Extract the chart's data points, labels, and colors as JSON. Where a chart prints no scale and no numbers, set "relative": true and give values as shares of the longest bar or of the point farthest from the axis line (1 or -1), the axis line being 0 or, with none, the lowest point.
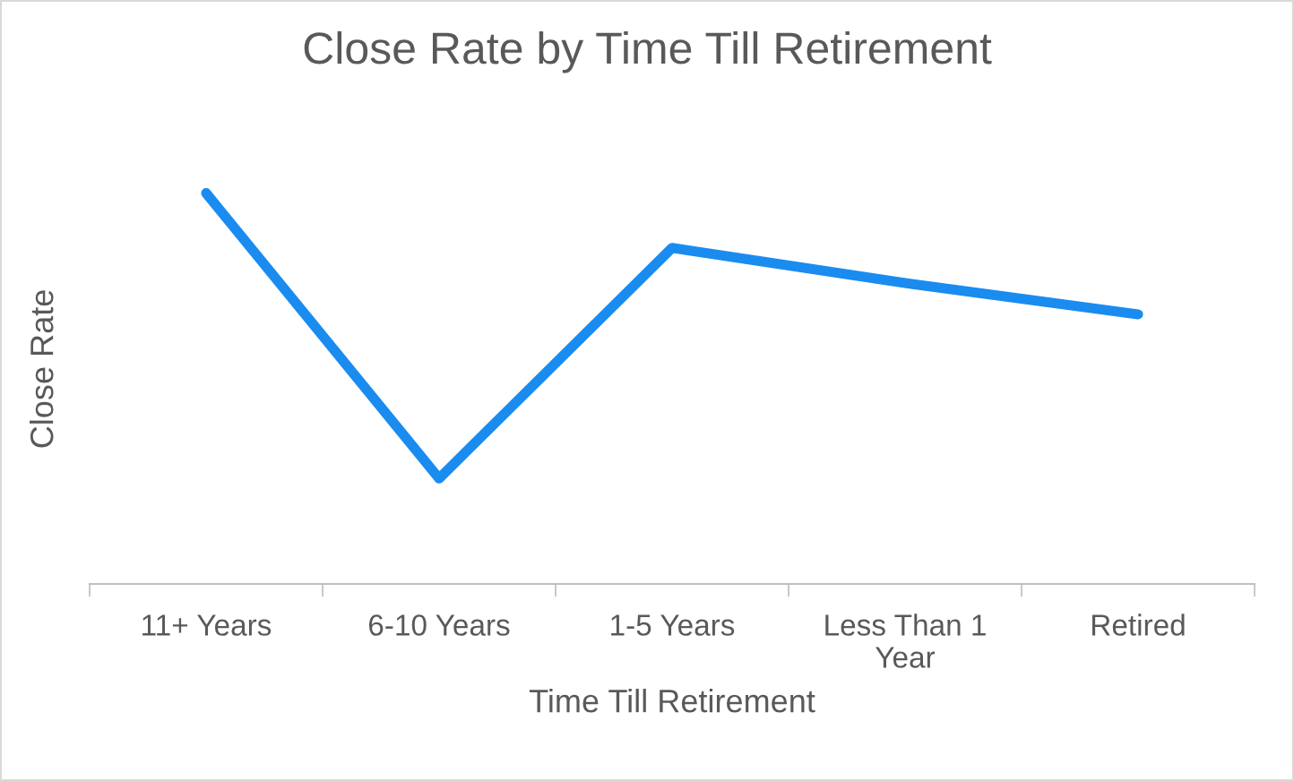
{
  "chart_data": {
    "type": "line",
    "title": "Close Rate by Time Till Retirement",
    "xlabel": "Time Till Retirement",
    "ylabel": "Close Rate",
    "categories": [
      "11+ Years",
      "6-10 Years",
      "1-5 Years",
      "Less Than 1\nYear",
      "Retired"
    ],
    "series": [
      {
        "color": "#1a8cf0",
        "values": [
          1,
          0.27,
          0.86,
          0.77,
          0.69
        ]
      }
    ],
    "relative": true,
    "grid": false,
    "legend": false,
    "marker": "none",
    "line_style": "solid"
  }
}
